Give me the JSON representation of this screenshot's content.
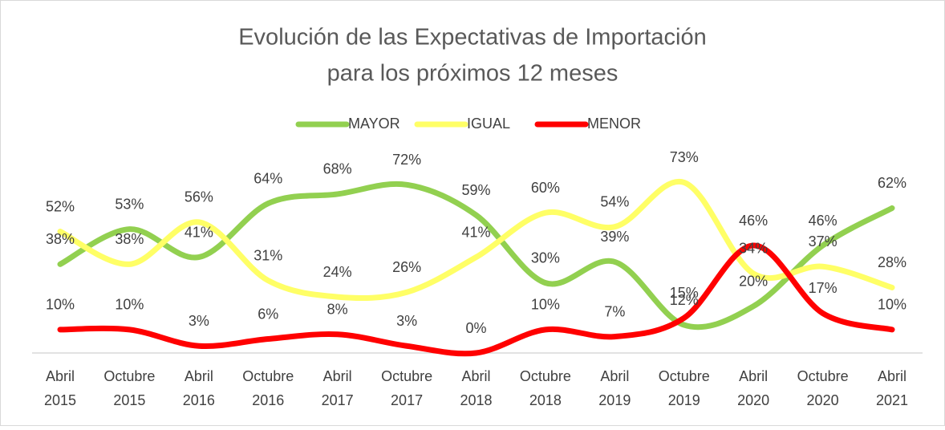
{
  "chart_data": {
    "type": "line",
    "title": [
      "Evolución de las Expectativas de Importación",
      "para los próximos 12 meses"
    ],
    "categories": [
      "Abril 2015",
      "Octubre 2015",
      "Abril 2016",
      "Octubre 2016",
      "Abril 2017",
      "Octubre 2017",
      "Abril 2018",
      "Octubre 2018",
      "Abril 2019",
      "Octubre 2019",
      "Abril 2020",
      "Octubre 2020",
      "Abril 2021"
    ],
    "series": [
      {
        "name": "MAYOR",
        "color": "#92d050",
        "values": [
          38,
          53,
          41,
          64,
          68,
          72,
          59,
          30,
          39,
          12,
          20,
          46,
          62
        ],
        "value_labels": [
          "38%",
          "53%",
          "41%",
          "64%",
          "68%",
          "72%",
          "59%",
          "30%",
          "39%",
          "12%",
          "20%",
          "46%",
          "62%"
        ]
      },
      {
        "name": "IGUAL",
        "color": "#ffff66",
        "values": [
          52,
          38,
          56,
          31,
          24,
          26,
          41,
          60,
          54,
          73,
          34,
          37,
          28
        ],
        "value_labels": [
          "52%",
          "38%",
          "56%",
          "31%",
          "24%",
          "26%",
          "41%",
          "60%",
          "54%",
          "73%",
          "34%",
          "37%",
          "28%"
        ]
      },
      {
        "name": "MENOR",
        "color": "#ff0000",
        "values": [
          10,
          10,
          3,
          6,
          8,
          3,
          0,
          10,
          7,
          15,
          46,
          17,
          10
        ],
        "value_labels": [
          "10%",
          "10%",
          "3%",
          "6%",
          "8%",
          "3%",
          "0%",
          "10%",
          "7%",
          "15%",
          "46%",
          "17%",
          "10%"
        ]
      }
    ],
    "ylim": [
      0,
      80
    ],
    "legend": "top"
  }
}
